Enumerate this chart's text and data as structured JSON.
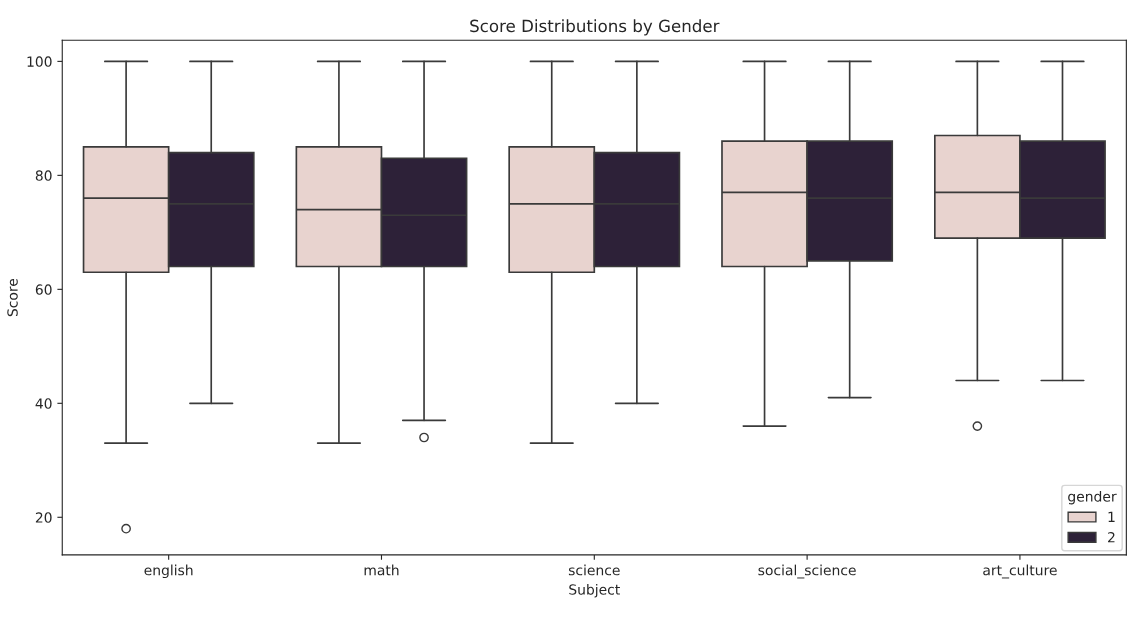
{
  "chart_data": {
    "type": "box",
    "title": "Score Distributions by Gender",
    "xlabel": "Subject",
    "ylabel": "Score",
    "legend_title": "gender",
    "categories": [
      "english",
      "math",
      "science",
      "social_science",
      "art_culture"
    ],
    "series": [
      {
        "name": "1",
        "color": "#e8d3cf",
        "boxes": [
          {
            "low": 33,
            "q1": 63,
            "median": 76,
            "q3": 85,
            "high": 100,
            "outliers": [
              18
            ]
          },
          {
            "low": 33,
            "q1": 64,
            "median": 74,
            "q3": 85,
            "high": 100
          },
          {
            "low": 33,
            "q1": 63,
            "median": 75,
            "q3": 85,
            "high": 100
          },
          {
            "low": 36,
            "q1": 64,
            "median": 77,
            "q3": 86,
            "high": 100
          },
          {
            "low": 44,
            "q1": 69,
            "median": 77,
            "q3": 87,
            "high": 100,
            "outliers": [
              36
            ]
          }
        ]
      },
      {
        "name": "2",
        "color": "#2d2138",
        "boxes": [
          {
            "low": 40,
            "q1": 64,
            "median": 75,
            "q3": 84,
            "high": 100
          },
          {
            "low": 37,
            "q1": 64,
            "median": 73,
            "q3": 83,
            "high": 100,
            "outliers": [
              34
            ]
          },
          {
            "low": 40,
            "q1": 64,
            "median": 75,
            "q3": 84,
            "high": 100
          },
          {
            "low": 41,
            "q1": 65,
            "median": 76,
            "q3": 86,
            "high": 100
          },
          {
            "low": 44,
            "q1": 69,
            "median": 76,
            "q3": 86,
            "high": 100
          }
        ]
      }
    ],
    "ylim": [
      13.4,
      103.7
    ],
    "yticks": [
      20,
      40,
      60,
      80,
      100
    ],
    "grid": false,
    "legend": "bottom right",
    "marker": "circle"
  }
}
